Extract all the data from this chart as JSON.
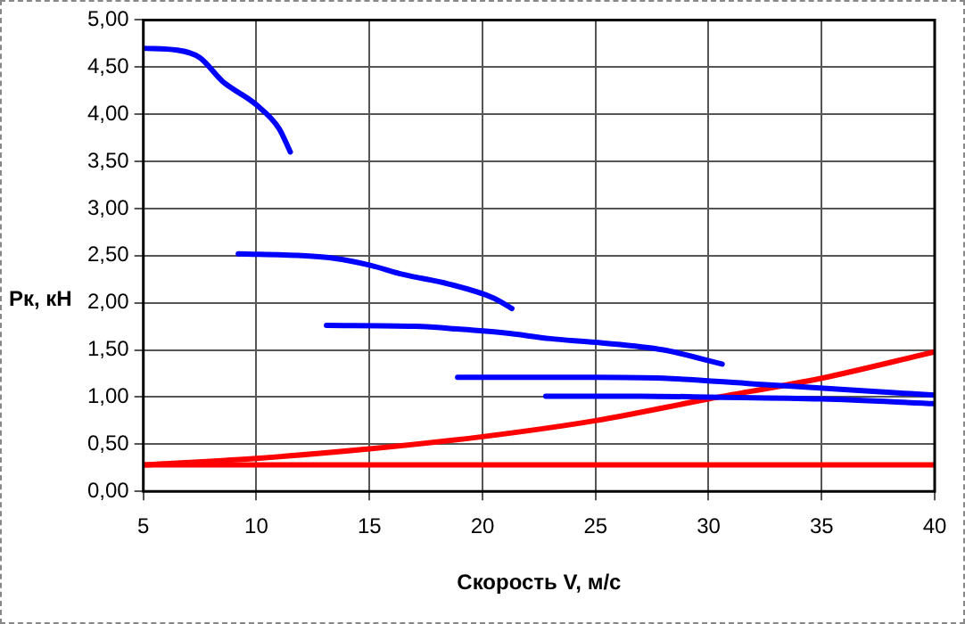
{
  "chart_data": {
    "type": "line",
    "xlabel": "Скорость V, м/с",
    "ylabel": "Рк, кН",
    "xlim": [
      5,
      40
    ],
    "xticks": [
      5,
      10,
      15,
      20,
      25,
      30,
      35,
      40
    ],
    "ylim": [
      0,
      5
    ],
    "yticks": [
      {
        "value": 0,
        "label": "0,00"
      },
      {
        "value": 0.5,
        "label": "0,50"
      },
      {
        "value": 1,
        "label": "1,00"
      },
      {
        "value": 1.5,
        "label": "1,50"
      },
      {
        "value": 2,
        "label": "2,00"
      },
      {
        "value": 2.5,
        "label": "2,50"
      },
      {
        "value": 3,
        "label": "3,00"
      },
      {
        "value": 3.5,
        "label": "3,50"
      },
      {
        "value": 4,
        "label": "4,00"
      },
      {
        "value": 4.5,
        "label": "4,50"
      },
      {
        "value": 5,
        "label": "5,00"
      }
    ],
    "grid": true,
    "legend": false,
    "marker": "none",
    "line_style": "solid",
    "series": [
      {
        "color": "#0000ff",
        "x": [
          5,
          6.5,
          7.5,
          8.5,
          10,
          11,
          11.5
        ],
        "values": [
          4.7,
          4.68,
          4.6,
          4.35,
          4.1,
          3.85,
          3.6
        ]
      },
      {
        "color": "#0000ff",
        "x": [
          9.2,
          12,
          13.5,
          15,
          16.5,
          18.5,
          20.5,
          21.3
        ],
        "values": [
          2.52,
          2.5,
          2.47,
          2.4,
          2.3,
          2.2,
          2.05,
          1.94
        ]
      },
      {
        "color": "#0000ff",
        "x": [
          13.1,
          17,
          19,
          21,
          23,
          25,
          28,
          30.6
        ],
        "values": [
          1.76,
          1.75,
          1.72,
          1.68,
          1.62,
          1.58,
          1.5,
          1.35
        ]
      },
      {
        "color": "#0000ff",
        "x": [
          18.9,
          25,
          28,
          32,
          36,
          40
        ],
        "values": [
          1.21,
          1.21,
          1.2,
          1.14,
          1.08,
          1.02
        ]
      },
      {
        "color": "#0000ff",
        "x": [
          22.8,
          27,
          30,
          35,
          40
        ],
        "values": [
          1.01,
          1.01,
          1.0,
          0.98,
          0.93
        ]
      },
      {
        "color": "#ff0000",
        "x": [
          5,
          10,
          15,
          20,
          25,
          30,
          35,
          40
        ],
        "values": [
          0.28,
          0.35,
          0.45,
          0.58,
          0.75,
          0.98,
          1.2,
          1.48
        ]
      },
      {
        "color": "#ff0000",
        "x": [
          5,
          40
        ],
        "values": [
          0.28,
          0.28
        ]
      }
    ]
  }
}
